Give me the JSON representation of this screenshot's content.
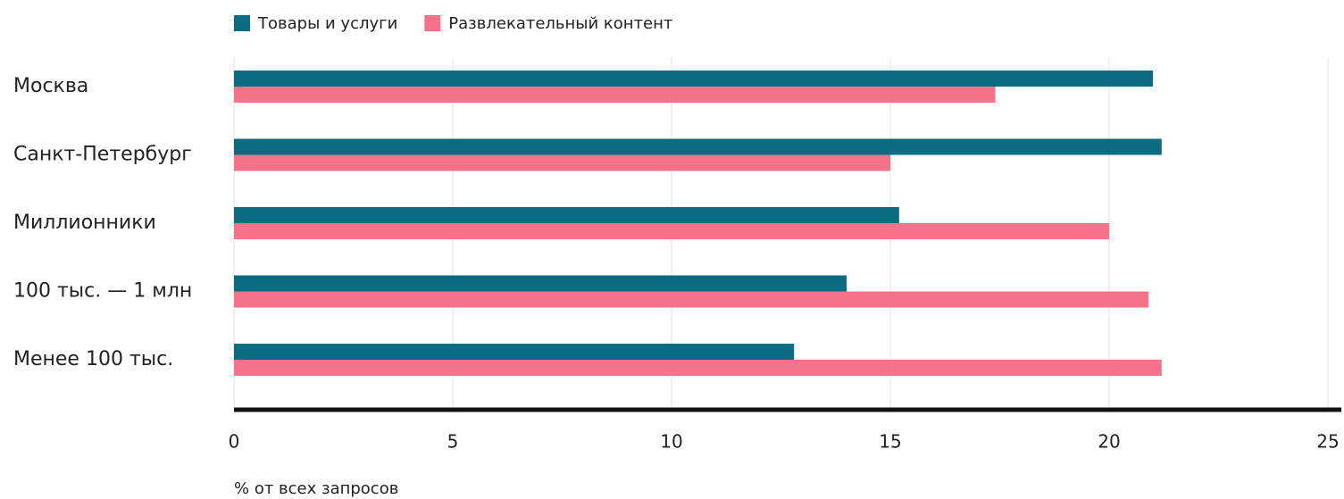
{
  "chart_data": {
    "type": "bar",
    "orientation": "horizontal",
    "categories": [
      "Москва",
      "Санкт-Петербург",
      "Миллионники",
      "100 тыс. — 1 млн",
      "Менее 100 тыс."
    ],
    "series": [
      {
        "name": "Товары и услуги",
        "color": "#0b6b80",
        "values": [
          21.0,
          21.2,
          15.2,
          14.0,
          12.8
        ]
      },
      {
        "name": "Развлекательный контент",
        "color": "#f4738b",
        "values": [
          17.4,
          15.0,
          20.0,
          20.9,
          21.2
        ]
      }
    ],
    "xlabel": "% от всех запросов",
    "xlim": [
      0,
      25
    ],
    "xticks": [
      0,
      5,
      10,
      15,
      20,
      25
    ],
    "grid": true
  }
}
